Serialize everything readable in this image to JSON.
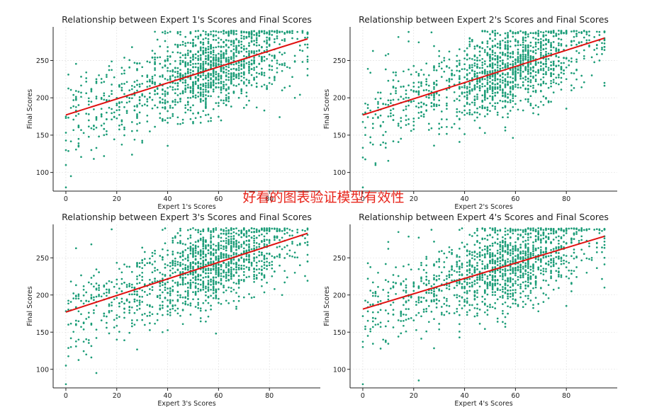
{
  "watermark": "好看的图表验证模型有效性",
  "colors": {
    "points": "#1a9c77",
    "fit_line": "#e01010",
    "grid": "#dcdcdc"
  },
  "chart_data": [
    {
      "type": "scatter",
      "title": "Relationship between Expert 1's Scores and Final Scores",
      "xlabel": "Expert 1's Scores",
      "ylabel": "Final Scores",
      "xlim": [
        -5,
        100
      ],
      "ylim": [
        75,
        295
      ],
      "xticks": [
        0,
        20,
        40,
        60,
        80
      ],
      "yticks": [
        100,
        150,
        200,
        250
      ],
      "grid": true,
      "regression_line": {
        "x": [
          0,
          95
        ],
        "y": [
          177,
          279
        ]
      },
      "sample_points": [
        [
          0,
          80
        ],
        [
          0,
          110
        ],
        [
          2,
          95
        ],
        [
          5,
          145
        ],
        [
          10,
          130
        ],
        [
          12,
          160
        ],
        [
          15,
          150
        ],
        [
          18,
          185
        ],
        [
          20,
          200
        ],
        [
          22,
          170
        ],
        [
          25,
          210
        ],
        [
          28,
          190
        ],
        [
          30,
          140
        ],
        [
          32,
          230
        ],
        [
          35,
          220
        ],
        [
          38,
          205
        ],
        [
          40,
          250
        ],
        [
          42,
          230
        ],
        [
          45,
          260
        ],
        [
          48,
          200
        ],
        [
          50,
          270
        ],
        [
          52,
          240
        ],
        [
          55,
          285
        ],
        [
          58,
          250
        ],
        [
          60,
          220
        ],
        [
          62,
          275
        ],
        [
          65,
          290
        ],
        [
          68,
          260
        ],
        [
          70,
          240
        ],
        [
          72,
          285
        ],
        [
          75,
          270
        ],
        [
          78,
          230
        ],
        [
          80,
          280
        ],
        [
          82,
          255
        ],
        [
          85,
          210
        ],
        [
          88,
          240
        ],
        [
          90,
          200
        ],
        [
          92,
          270
        ],
        [
          95,
          230
        ]
      ]
    },
    {
      "type": "scatter",
      "title": "Relationship between Expert 2's Scores and Final Scores",
      "xlabel": "Expert 2's Scores",
      "ylabel": "Final Scores",
      "xlim": [
        -5,
        100
      ],
      "ylim": [
        75,
        295
      ],
      "xticks": [
        0,
        20,
        40,
        60,
        80
      ],
      "yticks": [
        100,
        150,
        200,
        250
      ],
      "grid": true,
      "regression_line": {
        "x": [
          0,
          95
        ],
        "y": [
          177,
          280
        ]
      },
      "sample_points": [
        [
          0,
          80
        ],
        [
          0,
          120
        ],
        [
          3,
          140
        ],
        [
          5,
          110
        ],
        [
          8,
          150
        ],
        [
          10,
          175
        ],
        [
          15,
          160
        ],
        [
          18,
          200
        ],
        [
          20,
          215
        ],
        [
          22,
          180
        ],
        [
          25,
          225
        ],
        [
          28,
          240
        ],
        [
          30,
          190
        ],
        [
          32,
          250
        ],
        [
          35,
          230
        ],
        [
          38,
          265
        ],
        [
          40,
          245
        ],
        [
          42,
          280
        ],
        [
          45,
          270
        ],
        [
          48,
          225
        ],
        [
          50,
          285
        ],
        [
          52,
          260
        ],
        [
          55,
          240
        ],
        [
          58,
          290
        ],
        [
          60,
          270
        ],
        [
          62,
          250
        ],
        [
          65,
          285
        ],
        [
          68,
          230
        ],
        [
          70,
          275
        ],
        [
          72,
          255
        ],
        [
          75,
          290
        ],
        [
          78,
          240
        ],
        [
          80,
          270
        ],
        [
          82,
          210
        ],
        [
          85,
          260
        ],
        [
          88,
          285
        ],
        [
          90,
          230
        ],
        [
          93,
          250
        ],
        [
          95,
          220
        ]
      ]
    },
    {
      "type": "scatter",
      "title": "Relationship between Expert 3's Scores and Final Scores",
      "xlabel": "Expert 3's Scores",
      "ylabel": "Final Scores",
      "xlim": [
        -5,
        100
      ],
      "ylim": [
        75,
        295
      ],
      "xticks": [
        0,
        20,
        40,
        60,
        80
      ],
      "yticks": [
        100,
        150,
        200,
        250
      ],
      "grid": true,
      "regression_line": {
        "x": [
          0,
          95
        ],
        "y": [
          177,
          283
        ]
      },
      "sample_points": [
        [
          0,
          80
        ],
        [
          0,
          105
        ],
        [
          2,
          130
        ],
        [
          5,
          140
        ],
        [
          8,
          120
        ],
        [
          10,
          160
        ],
        [
          12,
          95
        ],
        [
          15,
          175
        ],
        [
          18,
          190
        ],
        [
          20,
          140
        ],
        [
          22,
          205
        ],
        [
          25,
          215
        ],
        [
          28,
          180
        ],
        [
          30,
          230
        ],
        [
          32,
          200
        ],
        [
          35,
          245
        ],
        [
          38,
          220
        ],
        [
          40,
          260
        ],
        [
          42,
          240
        ],
        [
          45,
          280
        ],
        [
          48,
          250
        ],
        [
          50,
          290
        ],
        [
          52,
          265
        ],
        [
          55,
          235
        ],
        [
          58,
          285
        ],
        [
          60,
          270
        ],
        [
          62,
          255
        ],
        [
          65,
          290
        ],
        [
          68,
          240
        ],
        [
          70,
          280
        ],
        [
          72,
          260
        ],
        [
          75,
          285
        ],
        [
          78,
          225
        ],
        [
          80,
          270
        ],
        [
          82,
          250
        ],
        [
          85,
          200
        ],
        [
          88,
          260
        ],
        [
          90,
          230
        ],
        [
          95,
          245
        ]
      ]
    },
    {
      "type": "scatter",
      "title": "Relationship between Expert 4's Scores and Final Scores",
      "xlabel": "Expert 4's Scores",
      "ylabel": "Final Scores",
      "xlim": [
        -5,
        100
      ],
      "ylim": [
        75,
        295
      ],
      "xticks": [
        0,
        20,
        40,
        60,
        80
      ],
      "yticks": [
        100,
        150,
        200,
        250
      ],
      "grid": true,
      "regression_line": {
        "x": [
          0,
          95
        ],
        "y": [
          181,
          279
        ]
      },
      "sample_points": [
        [
          0,
          80
        ],
        [
          0,
          130
        ],
        [
          2,
          145
        ],
        [
          5,
          160
        ],
        [
          8,
          140
        ],
        [
          10,
          175
        ],
        [
          12,
          190
        ],
        [
          15,
          165
        ],
        [
          18,
          200
        ],
        [
          20,
          215
        ],
        [
          22,
          85
        ],
        [
          25,
          230
        ],
        [
          28,
          205
        ],
        [
          30,
          245
        ],
        [
          32,
          220
        ],
        [
          35,
          255
        ],
        [
          38,
          235
        ],
        [
          40,
          265
        ],
        [
          42,
          245
        ],
        [
          45,
          280
        ],
        [
          48,
          255
        ],
        [
          50,
          290
        ],
        [
          52,
          270
        ],
        [
          55,
          240
        ],
        [
          58,
          285
        ],
        [
          60,
          260
        ],
        [
          62,
          280
        ],
        [
          65,
          290
        ],
        [
          68,
          250
        ],
        [
          70,
          275
        ],
        [
          72,
          235
        ],
        [
          75,
          285
        ],
        [
          78,
          265
        ],
        [
          80,
          245
        ],
        [
          82,
          215
        ],
        [
          85,
          270
        ],
        [
          88,
          230
        ],
        [
          90,
          250
        ],
        [
          95,
          210
        ]
      ]
    }
  ]
}
